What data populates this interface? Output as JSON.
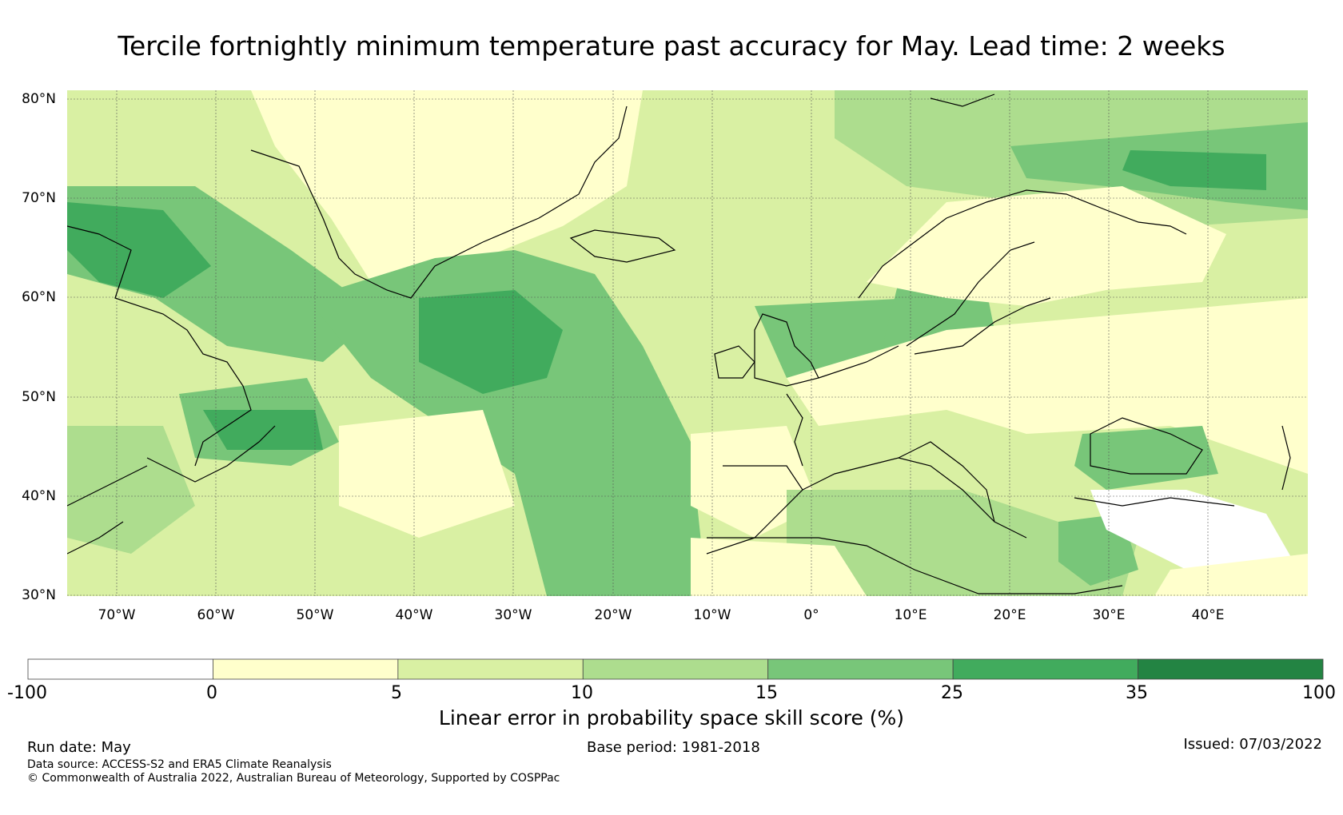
{
  "title": "Tercile fortnightly minimum temperature past accuracy for May. Lead time: 2 weeks",
  "map": {
    "lat_ticks": [
      "80°N",
      "70°N",
      "60°N",
      "50°N",
      "40°N",
      "30°N"
    ],
    "lon_ticks": [
      "70°W",
      "60°W",
      "50°W",
      "40°W",
      "30°W",
      "20°W",
      "10°W",
      "0°",
      "10°E",
      "20°E",
      "30°E",
      "40°E"
    ],
    "extent": {
      "lon_min": -75,
      "lon_max": 50,
      "lat_min": 30,
      "lat_max": 81
    }
  },
  "colorbar": {
    "ticks": [
      "-100",
      "0",
      "5",
      "10",
      "15",
      "25",
      "35",
      "100"
    ],
    "colors": [
      "#ffffff",
      "#ffffcc",
      "#d9f0a3",
      "#addd8e",
      "#78c679",
      "#41ab5d",
      "#238443"
    ],
    "label": "Linear error in probability space skill score (%)"
  },
  "footer": {
    "run_date": "Run date: May",
    "base_period": "Base period: 1981-2018",
    "issued": "Issued: 07/03/2022",
    "data_source": "Data source: ACCESS-S2 and ERA5 Climate Reanalysis",
    "copyright": "© Commonwealth of Australia 2022, Australian Bureau of Meteorology, Supported by COSPPac"
  }
}
